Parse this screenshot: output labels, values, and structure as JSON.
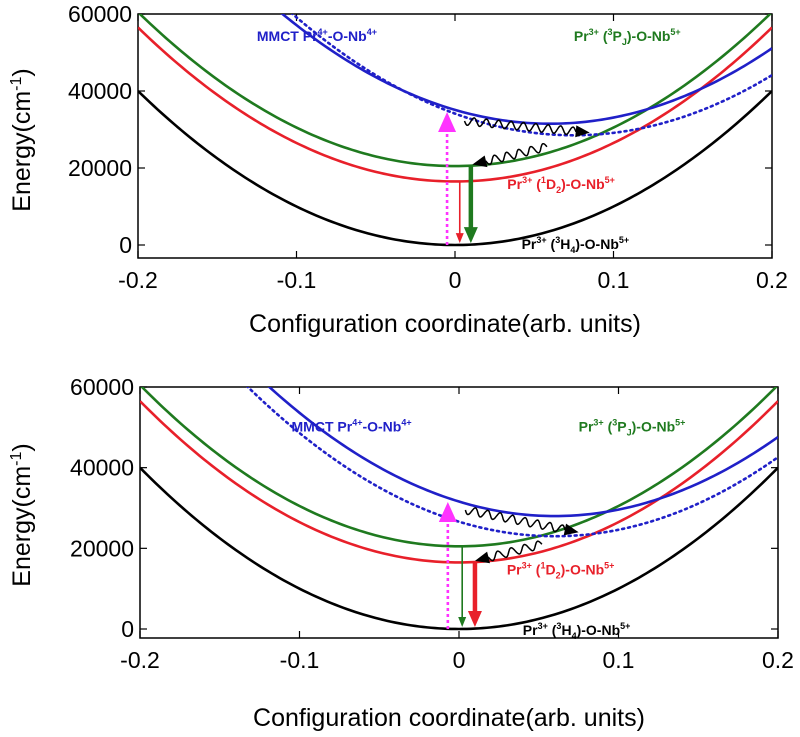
{
  "chart_data": [
    {
      "type": "line",
      "panel": "top",
      "xlabel": "Configuration coordinate(arb. units)",
      "ylabel": "Energy(cm",
      "ylabel_sup": "-1",
      "ylabel_end": ")",
      "xlim": [
        -0.2,
        0.2
      ],
      "ylim": [
        -3000,
        60000
      ],
      "xticks": [
        -0.2,
        -0.1,
        0,
        0.1,
        0.2
      ],
      "xtick_labels": [
        "-0.2",
        "-0.1",
        "0",
        "0.1",
        "0.2"
      ],
      "yticks": [
        0,
        20000,
        40000,
        60000
      ],
      "ytick_labels": [
        "0",
        "20000",
        "40000",
        "60000"
      ],
      "grid": false,
      "curves": [
        {
          "id": "ground",
          "color": "#000000",
          "dashed": false,
          "x0": 0.0,
          "e0": 0,
          "k": 1000000
        },
        {
          "id": "d2",
          "color": "#e8202a",
          "dashed": false,
          "x0": 0.0,
          "e0": 16500,
          "k": 1000000
        },
        {
          "id": "p",
          "color": "#1f7a1f",
          "dashed": false,
          "x0": 0.0,
          "e0": 20500,
          "k": 1000000
        },
        {
          "id": "mmct",
          "color": "#2020c8",
          "dashed": false,
          "x0": 0.06,
          "e0": 31500,
          "k": 1000000
        },
        {
          "id": "mmct_dotted",
          "color": "#2020c8",
          "dashed": true,
          "x0": 0.075,
          "e0": 28500,
          "k": 1000000
        }
      ],
      "labels": {
        "mmct": {
          "parts": [
            "MMCT  Pr",
            "4+",
            "-O-Nb",
            "4+"
          ],
          "color": "#2020c8",
          "x": -0.125,
          "y": 53000
        },
        "p": {
          "parts": [
            "Pr",
            "3+",
            "  (",
            "3",
            "P",
            "J",
            ")-O-Nb",
            "5+"
          ],
          "color": "#1f7a1f",
          "x": 0.075,
          "y": 53000
        },
        "d2": {
          "parts": [
            "Pr",
            "3+",
            " (",
            "1",
            "D",
            "2",
            ")-O-Nb",
            "5+"
          ],
          "color": "#e8202a",
          "x": 0.033,
          "y": 14500
        },
        "ground": {
          "parts": [
            "Pr",
            "3+",
            " (",
            "3",
            "H",
            "4",
            ")-O-Nb",
            "5+"
          ],
          "color": "#000000",
          "x": 0.042,
          "y": -1000
        }
      },
      "transitions": {
        "excitation": {
          "color": "#ff33ff",
          "x": -0.005,
          "y_from": 0,
          "y_to": 33500
        },
        "emission_d2": {
          "color": "#e8202a",
          "x": 0.003,
          "y_from": 16500,
          "y_to": 500,
          "thick": false
        },
        "emission_p": {
          "color": "#1f7a1f",
          "x": 0.01,
          "y_from": 20500,
          "y_to": 500,
          "thick": true
        },
        "relax_to_mmct": {
          "color": "#000000",
          "x_from": 0.006,
          "y_from": 32200,
          "x_to": 0.085,
          "y_to": 29200
        },
        "relax_to_level": {
          "color": "#000000",
          "x_from": 0.058,
          "y_from": 25500,
          "x_to": 0.011,
          "y_to": 20900
        }
      }
    },
    {
      "type": "line",
      "panel": "bottom",
      "xlabel": "Configuration coordinate(arb. units)",
      "ylabel": "Energy(cm",
      "ylabel_sup": "-1",
      "ylabel_end": ")",
      "xlim": [
        -0.2,
        0.2
      ],
      "ylim": [
        -3000,
        60000
      ],
      "xticks": [
        -0.2,
        -0.1,
        0,
        0.1,
        0.2
      ],
      "xtick_labels": [
        "-0.2",
        "-0.1",
        "0",
        "0.1",
        "0.2"
      ],
      "yticks": [
        0,
        20000,
        40000,
        60000
      ],
      "ytick_labels": [
        "0",
        "20000",
        "40000",
        "60000"
      ],
      "grid": false,
      "curves": [
        {
          "id": "ground",
          "color": "#000000",
          "dashed": false,
          "x0": 0.0,
          "e0": 0,
          "k": 1000000
        },
        {
          "id": "d2",
          "color": "#e8202a",
          "dashed": false,
          "x0": 0.0,
          "e0": 16500,
          "k": 1000000
        },
        {
          "id": "p",
          "color": "#1f7a1f",
          "dashed": false,
          "x0": 0.0,
          "e0": 20500,
          "k": 1000000
        },
        {
          "id": "mmct",
          "color": "#2020c8",
          "dashed": false,
          "x0": 0.06,
          "e0": 28000,
          "k": 1000000
        },
        {
          "id": "mmct_dotted",
          "color": "#2020c8",
          "dashed": true,
          "x0": 0.06,
          "e0": 23000,
          "k": 1000000
        }
      ],
      "labels": {
        "mmct": {
          "parts": [
            "MMCT  Pr",
            "4+",
            "-O-Nb",
            "4+"
          ],
          "color": "#2020c8",
          "x": -0.105,
          "y": 49000
        },
        "p": {
          "parts": [
            "Pr",
            "3+",
            "  (",
            "3",
            "P",
            "J",
            ")-O-Nb",
            "5+"
          ],
          "color": "#1f7a1f",
          "x": 0.075,
          "y": 49000
        },
        "d2": {
          "parts": [
            "Pr",
            "3+",
            " (",
            "1",
            "D",
            "2",
            ")-O-Nb",
            "5+"
          ],
          "color": "#e8202a",
          "x": 0.03,
          "y": 13500
        },
        "ground": {
          "parts": [
            "Pr",
            "3+",
            " (",
            "3",
            "H",
            "4",
            ")-O-Nb",
            "5+"
          ],
          "color": "#000000",
          "x": 0.04,
          "y": -1500
        }
      },
      "transitions": {
        "excitation": {
          "color": "#ff33ff",
          "x": -0.007,
          "y_from": 0,
          "y_to": 30500
        },
        "emission_p": {
          "color": "#1f7a1f",
          "x": 0.002,
          "y_from": 20500,
          "y_to": 500,
          "thick": false
        },
        "emission_d2": {
          "color": "#e8202a",
          "x": 0.01,
          "y_from": 16500,
          "y_to": 500,
          "thick": true
        },
        "relax_to_mmct": {
          "color": "#000000",
          "x_from": 0.004,
          "y_from": 29500,
          "x_to": 0.075,
          "y_to": 24000
        },
        "relax_to_level": {
          "color": "#000000",
          "x_from": 0.052,
          "y_from": 21000,
          "x_to": 0.01,
          "y_to": 16900
        }
      }
    }
  ]
}
